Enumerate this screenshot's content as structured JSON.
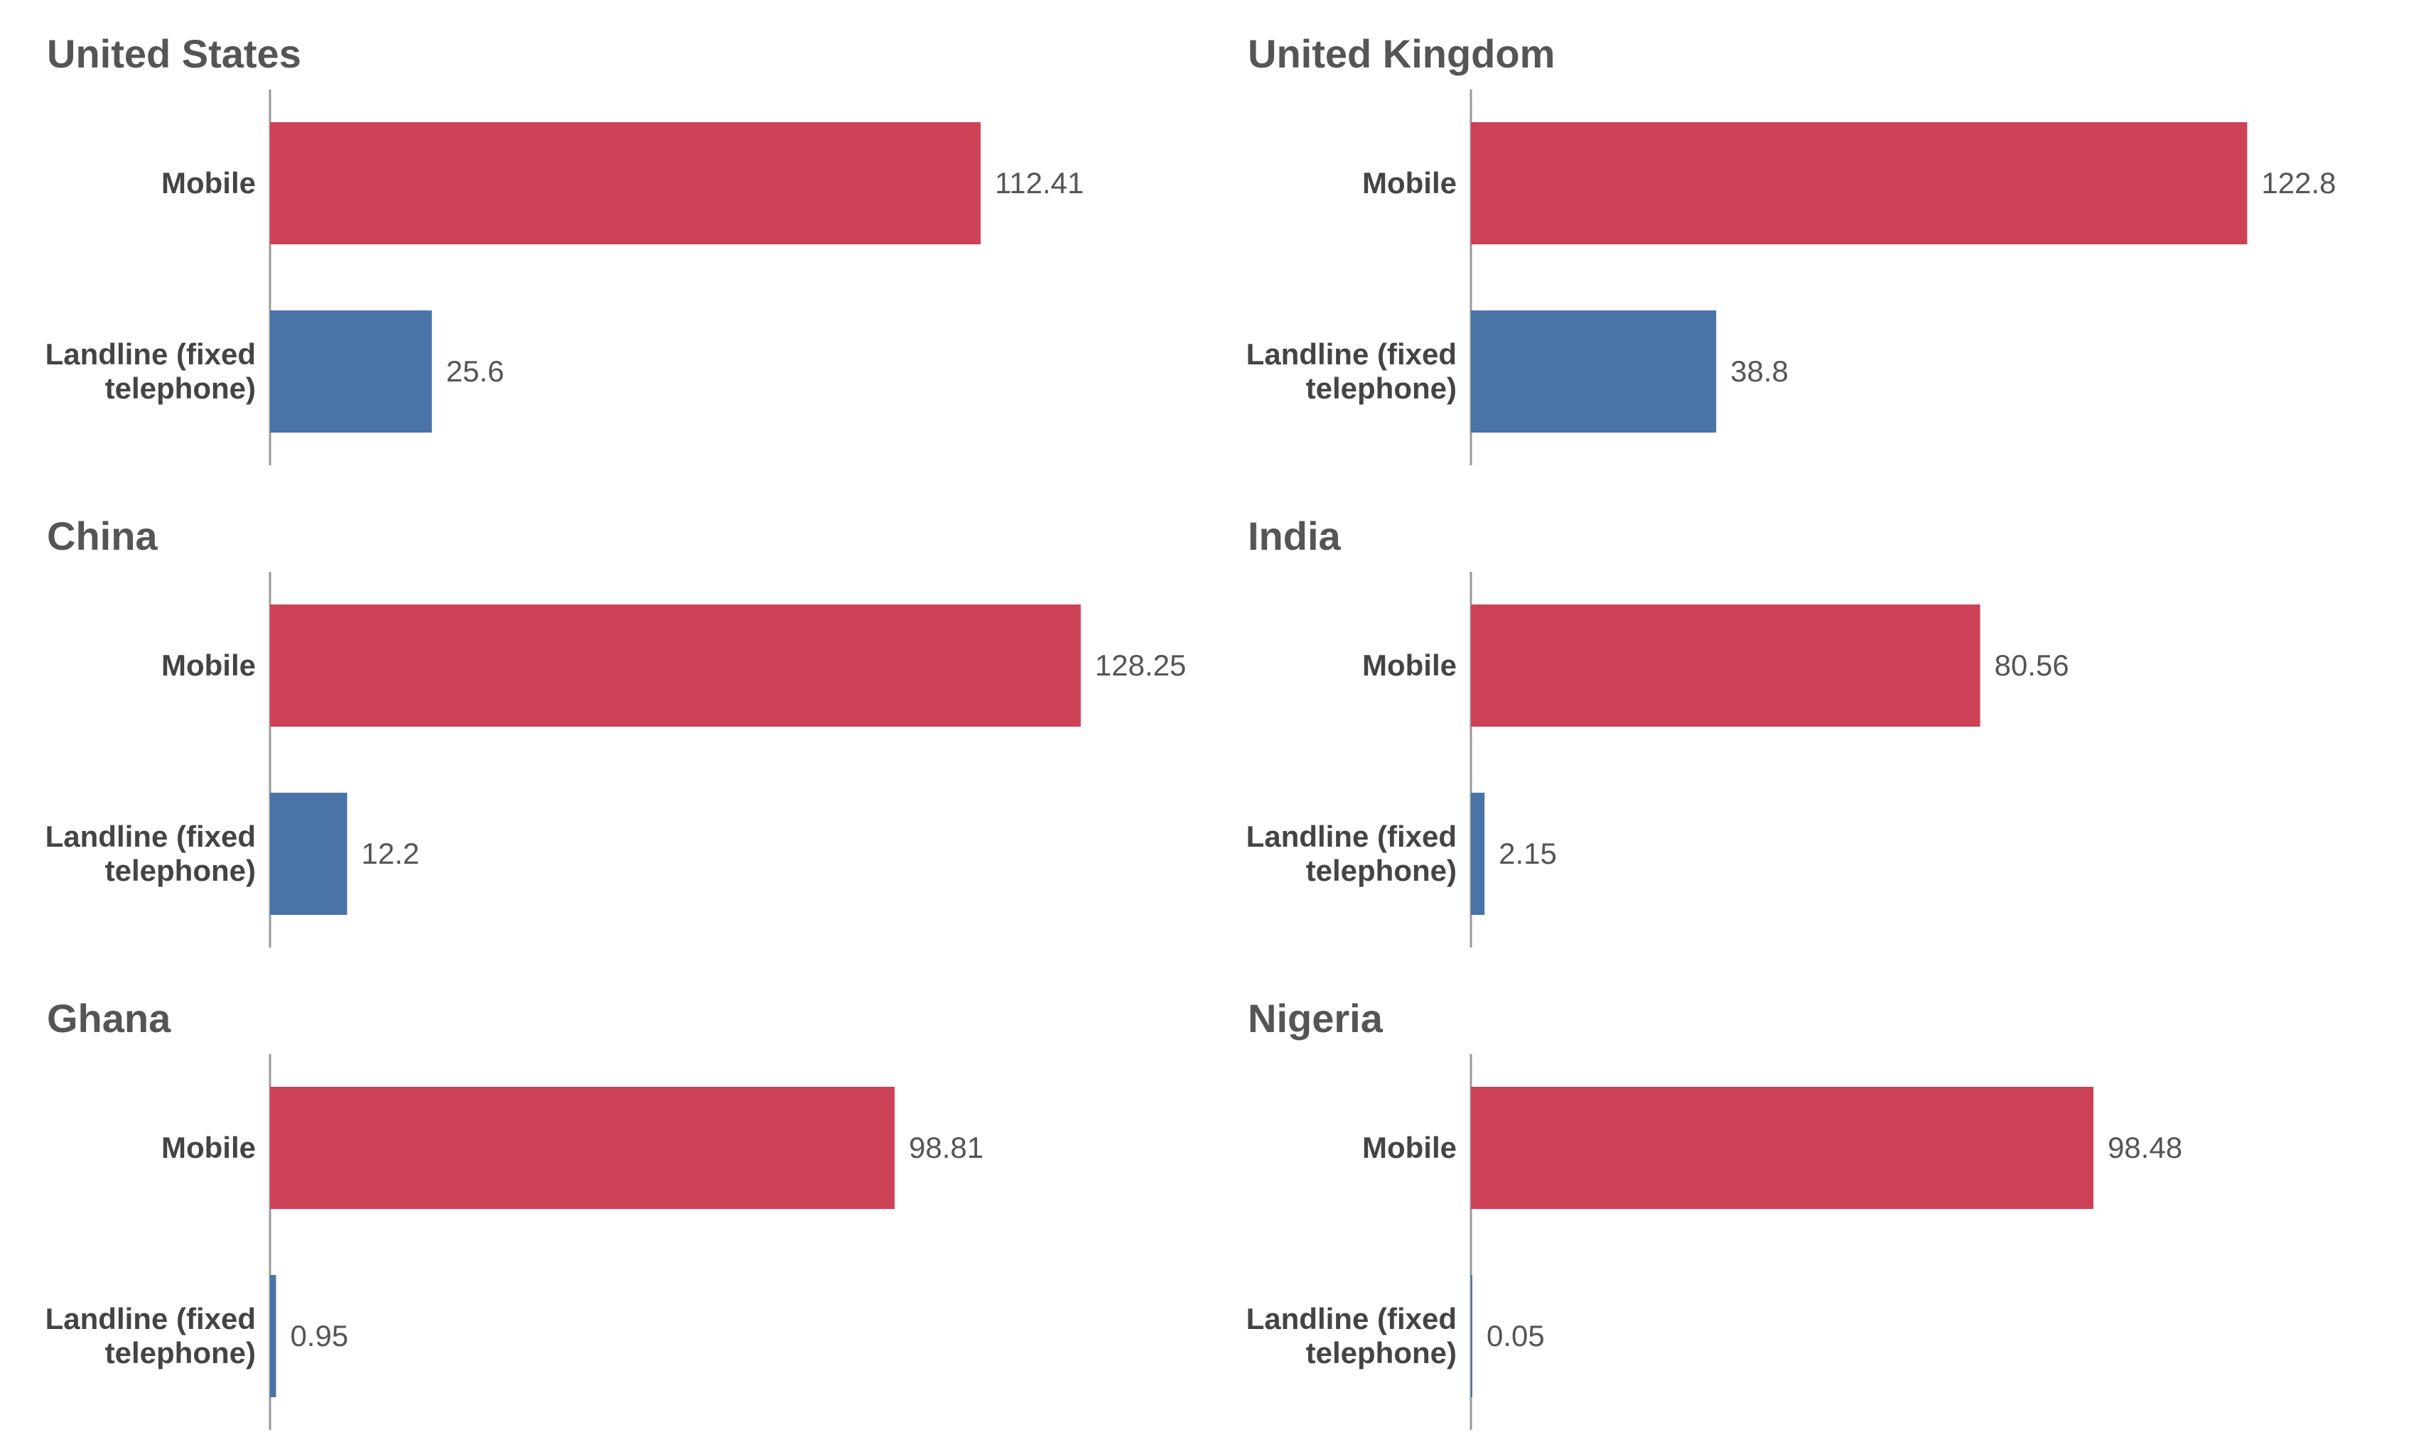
{
  "colors": {
    "mobile": "#CE4257",
    "landline": "#4A73A8",
    "title": "#555555",
    "label": "#444444"
  },
  "chart_data": [
    {
      "type": "bar",
      "orientation": "horizontal",
      "title": "United States",
      "categories": [
        "Mobile",
        "Landline (fixed telephone)"
      ],
      "category_lines": [
        [
          "Mobile"
        ],
        [
          "Landline (fixed",
          "telephone)"
        ]
      ],
      "values": [
        112.41,
        25.6
      ],
      "value_labels": [
        "112.41",
        "25.6"
      ],
      "xlim": [
        0,
        130
      ]
    },
    {
      "type": "bar",
      "orientation": "horizontal",
      "title": "United Kingdom",
      "categories": [
        "Mobile",
        "Landline (fixed telephone)"
      ],
      "category_lines": [
        [
          "Mobile"
        ],
        [
          "Landline (fixed",
          "telephone)"
        ]
      ],
      "values": [
        122.8,
        38.8
      ],
      "value_labels": [
        "122.8",
        "38.8"
      ],
      "xlim": [
        0,
        130
      ]
    },
    {
      "type": "bar",
      "orientation": "horizontal",
      "title": "China",
      "categories": [
        "Mobile",
        "Landline (fixed telephone)"
      ],
      "category_lines": [
        [
          "Mobile"
        ],
        [
          "Landline (fixed",
          "telephone)"
        ]
      ],
      "values": [
        128.25,
        12.2
      ],
      "value_labels": [
        "128.25",
        "12.2"
      ],
      "xlim": [
        0,
        130
      ]
    },
    {
      "type": "bar",
      "orientation": "horizontal",
      "title": "India",
      "categories": [
        "Mobile",
        "Landline (fixed telephone)"
      ],
      "category_lines": [
        [
          "Mobile"
        ],
        [
          "Landline (fixed",
          "telephone)"
        ]
      ],
      "values": [
        80.56,
        2.15
      ],
      "value_labels": [
        "80.56",
        "2.15"
      ],
      "xlim": [
        0,
        130
      ]
    },
    {
      "type": "bar",
      "orientation": "horizontal",
      "title": "Ghana",
      "categories": [
        "Mobile",
        "Landline (fixed telephone)"
      ],
      "category_lines": [
        [
          "Mobile"
        ],
        [
          "Landline (fixed",
          "telephone)"
        ]
      ],
      "values": [
        98.81,
        0.95
      ],
      "value_labels": [
        "98.81",
        "0.95"
      ],
      "xlim": [
        0,
        130
      ]
    },
    {
      "type": "bar",
      "orientation": "horizontal",
      "title": "Nigeria",
      "categories": [
        "Mobile",
        "Landline (fixed telephone)"
      ],
      "category_lines": [
        [
          "Mobile"
        ],
        [
          "Landline (fixed",
          "telephone)"
        ]
      ],
      "values": [
        98.48,
        0.05
      ],
      "value_labels": [
        "98.48",
        "0.05"
      ],
      "xlim": [
        0,
        130
      ]
    }
  ]
}
